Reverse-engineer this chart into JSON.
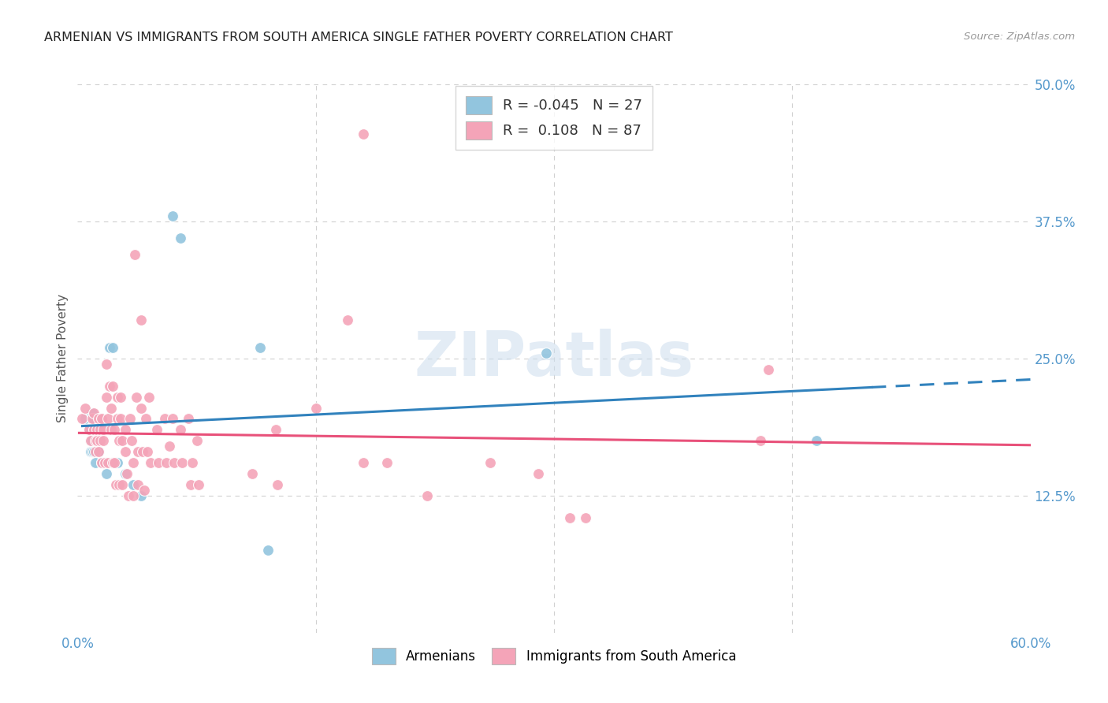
{
  "title": "ARMENIAN VS IMMIGRANTS FROM SOUTH AMERICA SINGLE FATHER POVERTY CORRELATION CHART",
  "source": "Source: ZipAtlas.com",
  "ylabel": "Single Father Poverty",
  "xlim": [
    0.0,
    0.6
  ],
  "ylim": [
    0.0,
    0.5
  ],
  "xtick_labels": [
    "0.0%",
    "60.0%"
  ],
  "xtick_values": [
    0.0,
    0.6
  ],
  "ytick_labels": [
    "12.5%",
    "25.0%",
    "37.5%",
    "50.0%"
  ],
  "ytick_values": [
    0.125,
    0.25,
    0.375,
    0.5
  ],
  "blue_color": "#92c5de",
  "pink_color": "#f4a4b8",
  "blue_line_color": "#3182bd",
  "pink_line_color": "#e8517a",
  "blue_R": -0.045,
  "blue_N": 27,
  "pink_R": 0.108,
  "pink_N": 87,
  "legend_label_blue": "Armenians",
  "legend_label_pink": "Immigrants from South America",
  "watermark": "ZIPatlas",
  "blue_scatter": [
    [
      0.005,
      0.195
    ],
    [
      0.007,
      0.185
    ],
    [
      0.008,
      0.175
    ],
    [
      0.008,
      0.165
    ],
    [
      0.009,
      0.2
    ],
    [
      0.009,
      0.175
    ],
    [
      0.009,
      0.165
    ],
    [
      0.01,
      0.195
    ],
    [
      0.01,
      0.185
    ],
    [
      0.01,
      0.165
    ],
    [
      0.011,
      0.155
    ],
    [
      0.012,
      0.175
    ],
    [
      0.013,
      0.165
    ],
    [
      0.015,
      0.155
    ],
    [
      0.018,
      0.145
    ],
    [
      0.02,
      0.26
    ],
    [
      0.022,
      0.26
    ],
    [
      0.025,
      0.155
    ],
    [
      0.03,
      0.145
    ],
    [
      0.035,
      0.135
    ],
    [
      0.04,
      0.125
    ],
    [
      0.06,
      0.38
    ],
    [
      0.065,
      0.36
    ],
    [
      0.115,
      0.26
    ],
    [
      0.295,
      0.255
    ],
    [
      0.465,
      0.175
    ],
    [
      0.12,
      0.075
    ]
  ],
  "pink_scatter": [
    [
      0.003,
      0.195
    ],
    [
      0.005,
      0.205
    ],
    [
      0.007,
      0.185
    ],
    [
      0.008,
      0.175
    ],
    [
      0.009,
      0.195
    ],
    [
      0.01,
      0.2
    ],
    [
      0.01,
      0.185
    ],
    [
      0.011,
      0.175
    ],
    [
      0.011,
      0.165
    ],
    [
      0.012,
      0.185
    ],
    [
      0.012,
      0.175
    ],
    [
      0.013,
      0.165
    ],
    [
      0.013,
      0.195
    ],
    [
      0.014,
      0.185
    ],
    [
      0.014,
      0.175
    ],
    [
      0.015,
      0.155
    ],
    [
      0.015,
      0.195
    ],
    [
      0.016,
      0.185
    ],
    [
      0.016,
      0.175
    ],
    [
      0.017,
      0.155
    ],
    [
      0.018,
      0.245
    ],
    [
      0.018,
      0.215
    ],
    [
      0.019,
      0.195
    ],
    [
      0.019,
      0.155
    ],
    [
      0.02,
      0.225
    ],
    [
      0.021,
      0.205
    ],
    [
      0.021,
      0.185
    ],
    [
      0.022,
      0.155
    ],
    [
      0.022,
      0.225
    ],
    [
      0.023,
      0.185
    ],
    [
      0.023,
      0.155
    ],
    [
      0.024,
      0.135
    ],
    [
      0.025,
      0.215
    ],
    [
      0.025,
      0.195
    ],
    [
      0.026,
      0.175
    ],
    [
      0.026,
      0.135
    ],
    [
      0.027,
      0.215
    ],
    [
      0.027,
      0.195
    ],
    [
      0.028,
      0.175
    ],
    [
      0.028,
      0.135
    ],
    [
      0.03,
      0.185
    ],
    [
      0.03,
      0.165
    ],
    [
      0.031,
      0.145
    ],
    [
      0.032,
      0.125
    ],
    [
      0.033,
      0.195
    ],
    [
      0.034,
      0.175
    ],
    [
      0.035,
      0.155
    ],
    [
      0.035,
      0.125
    ],
    [
      0.036,
      0.345
    ],
    [
      0.037,
      0.215
    ],
    [
      0.038,
      0.165
    ],
    [
      0.038,
      0.135
    ],
    [
      0.04,
      0.285
    ],
    [
      0.04,
      0.205
    ],
    [
      0.041,
      0.165
    ],
    [
      0.042,
      0.13
    ],
    [
      0.043,
      0.195
    ],
    [
      0.044,
      0.165
    ],
    [
      0.045,
      0.215
    ],
    [
      0.046,
      0.155
    ],
    [
      0.05,
      0.185
    ],
    [
      0.051,
      0.155
    ],
    [
      0.055,
      0.195
    ],
    [
      0.056,
      0.155
    ],
    [
      0.058,
      0.17
    ],
    [
      0.06,
      0.195
    ],
    [
      0.061,
      0.155
    ],
    [
      0.065,
      0.185
    ],
    [
      0.066,
      0.155
    ],
    [
      0.07,
      0.195
    ],
    [
      0.071,
      0.135
    ],
    [
      0.072,
      0.155
    ],
    [
      0.075,
      0.175
    ],
    [
      0.076,
      0.135
    ],
    [
      0.11,
      0.145
    ],
    [
      0.125,
      0.185
    ],
    [
      0.126,
      0.135
    ],
    [
      0.15,
      0.205
    ],
    [
      0.17,
      0.285
    ],
    [
      0.18,
      0.155
    ],
    [
      0.195,
      0.155
    ],
    [
      0.22,
      0.125
    ],
    [
      0.26,
      0.155
    ],
    [
      0.29,
      0.145
    ],
    [
      0.31,
      0.105
    ],
    [
      0.32,
      0.105
    ],
    [
      0.43,
      0.175
    ],
    [
      0.435,
      0.24
    ],
    [
      0.18,
      0.455
    ]
  ],
  "background_color": "#ffffff",
  "grid_color": "#d0d0d0",
  "title_color": "#222222",
  "axis_color": "#5599cc"
}
